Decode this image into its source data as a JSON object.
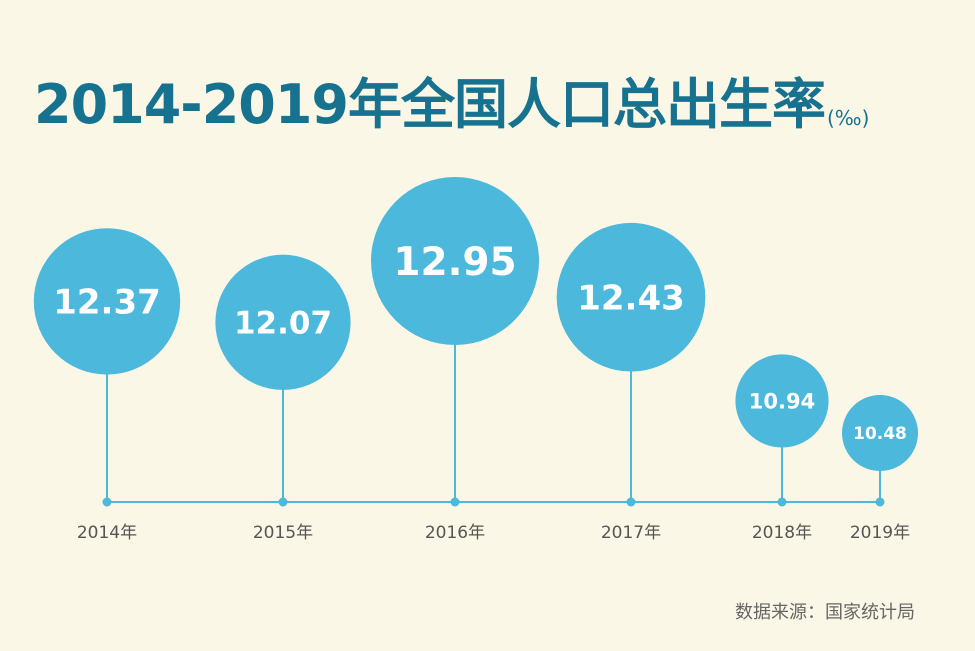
{
  "chart_data": {
    "type": "bubble",
    "title": "2014-2019年全国人口总出生率",
    "unit": "(‰)",
    "categories": [
      "2014年",
      "2015年",
      "2016年",
      "2017年",
      "2018年",
      "2019年"
    ],
    "values": [
      12.37,
      12.07,
      12.95,
      12.43,
      10.94,
      10.48
    ],
    "value_labels": [
      "12.37",
      "12.07",
      "12.95",
      "12.43",
      "10.94",
      "10.48"
    ],
    "legend": "none",
    "grid": false
  },
  "source": "数据来源：国家统计局",
  "colors": {
    "background": "#fbf7e6",
    "bubble": "#4bb8dc",
    "line": "#4bb8dc",
    "title": "#17728f"
  }
}
